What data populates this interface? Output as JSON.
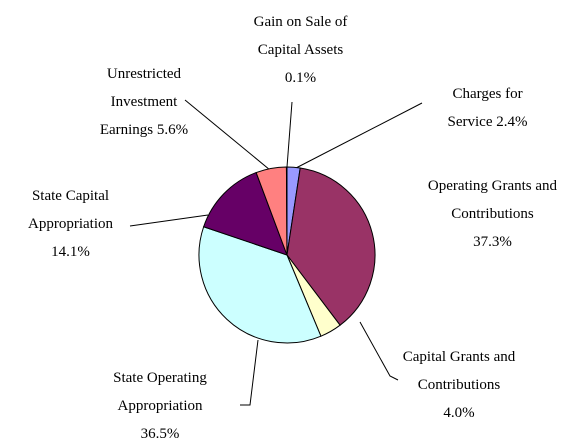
{
  "chart_data": {
    "type": "pie",
    "categories": [
      "Charges for Service",
      "Operating Grants and Contributions",
      "Capital Grants and Contributions",
      "State Operating Appropriation",
      "State Capital Appropriation",
      "Unrestricted Investment Earnings",
      "Gain on Sale of Capital Assets"
    ],
    "values": [
      2.4,
      37.3,
      4.0,
      36.5,
      14.1,
      5.6,
      0.1
    ],
    "value_labels": [
      "2.4%",
      "37.3%",
      "4.0%",
      "36.5%",
      "14.1%",
      "5.6%",
      "0.1%"
    ],
    "colors": [
      "#9999ff",
      "#993366",
      "#ffffcc",
      "#ccffff",
      "#660066",
      "#ff8080",
      "#9999ff"
    ]
  }
}
